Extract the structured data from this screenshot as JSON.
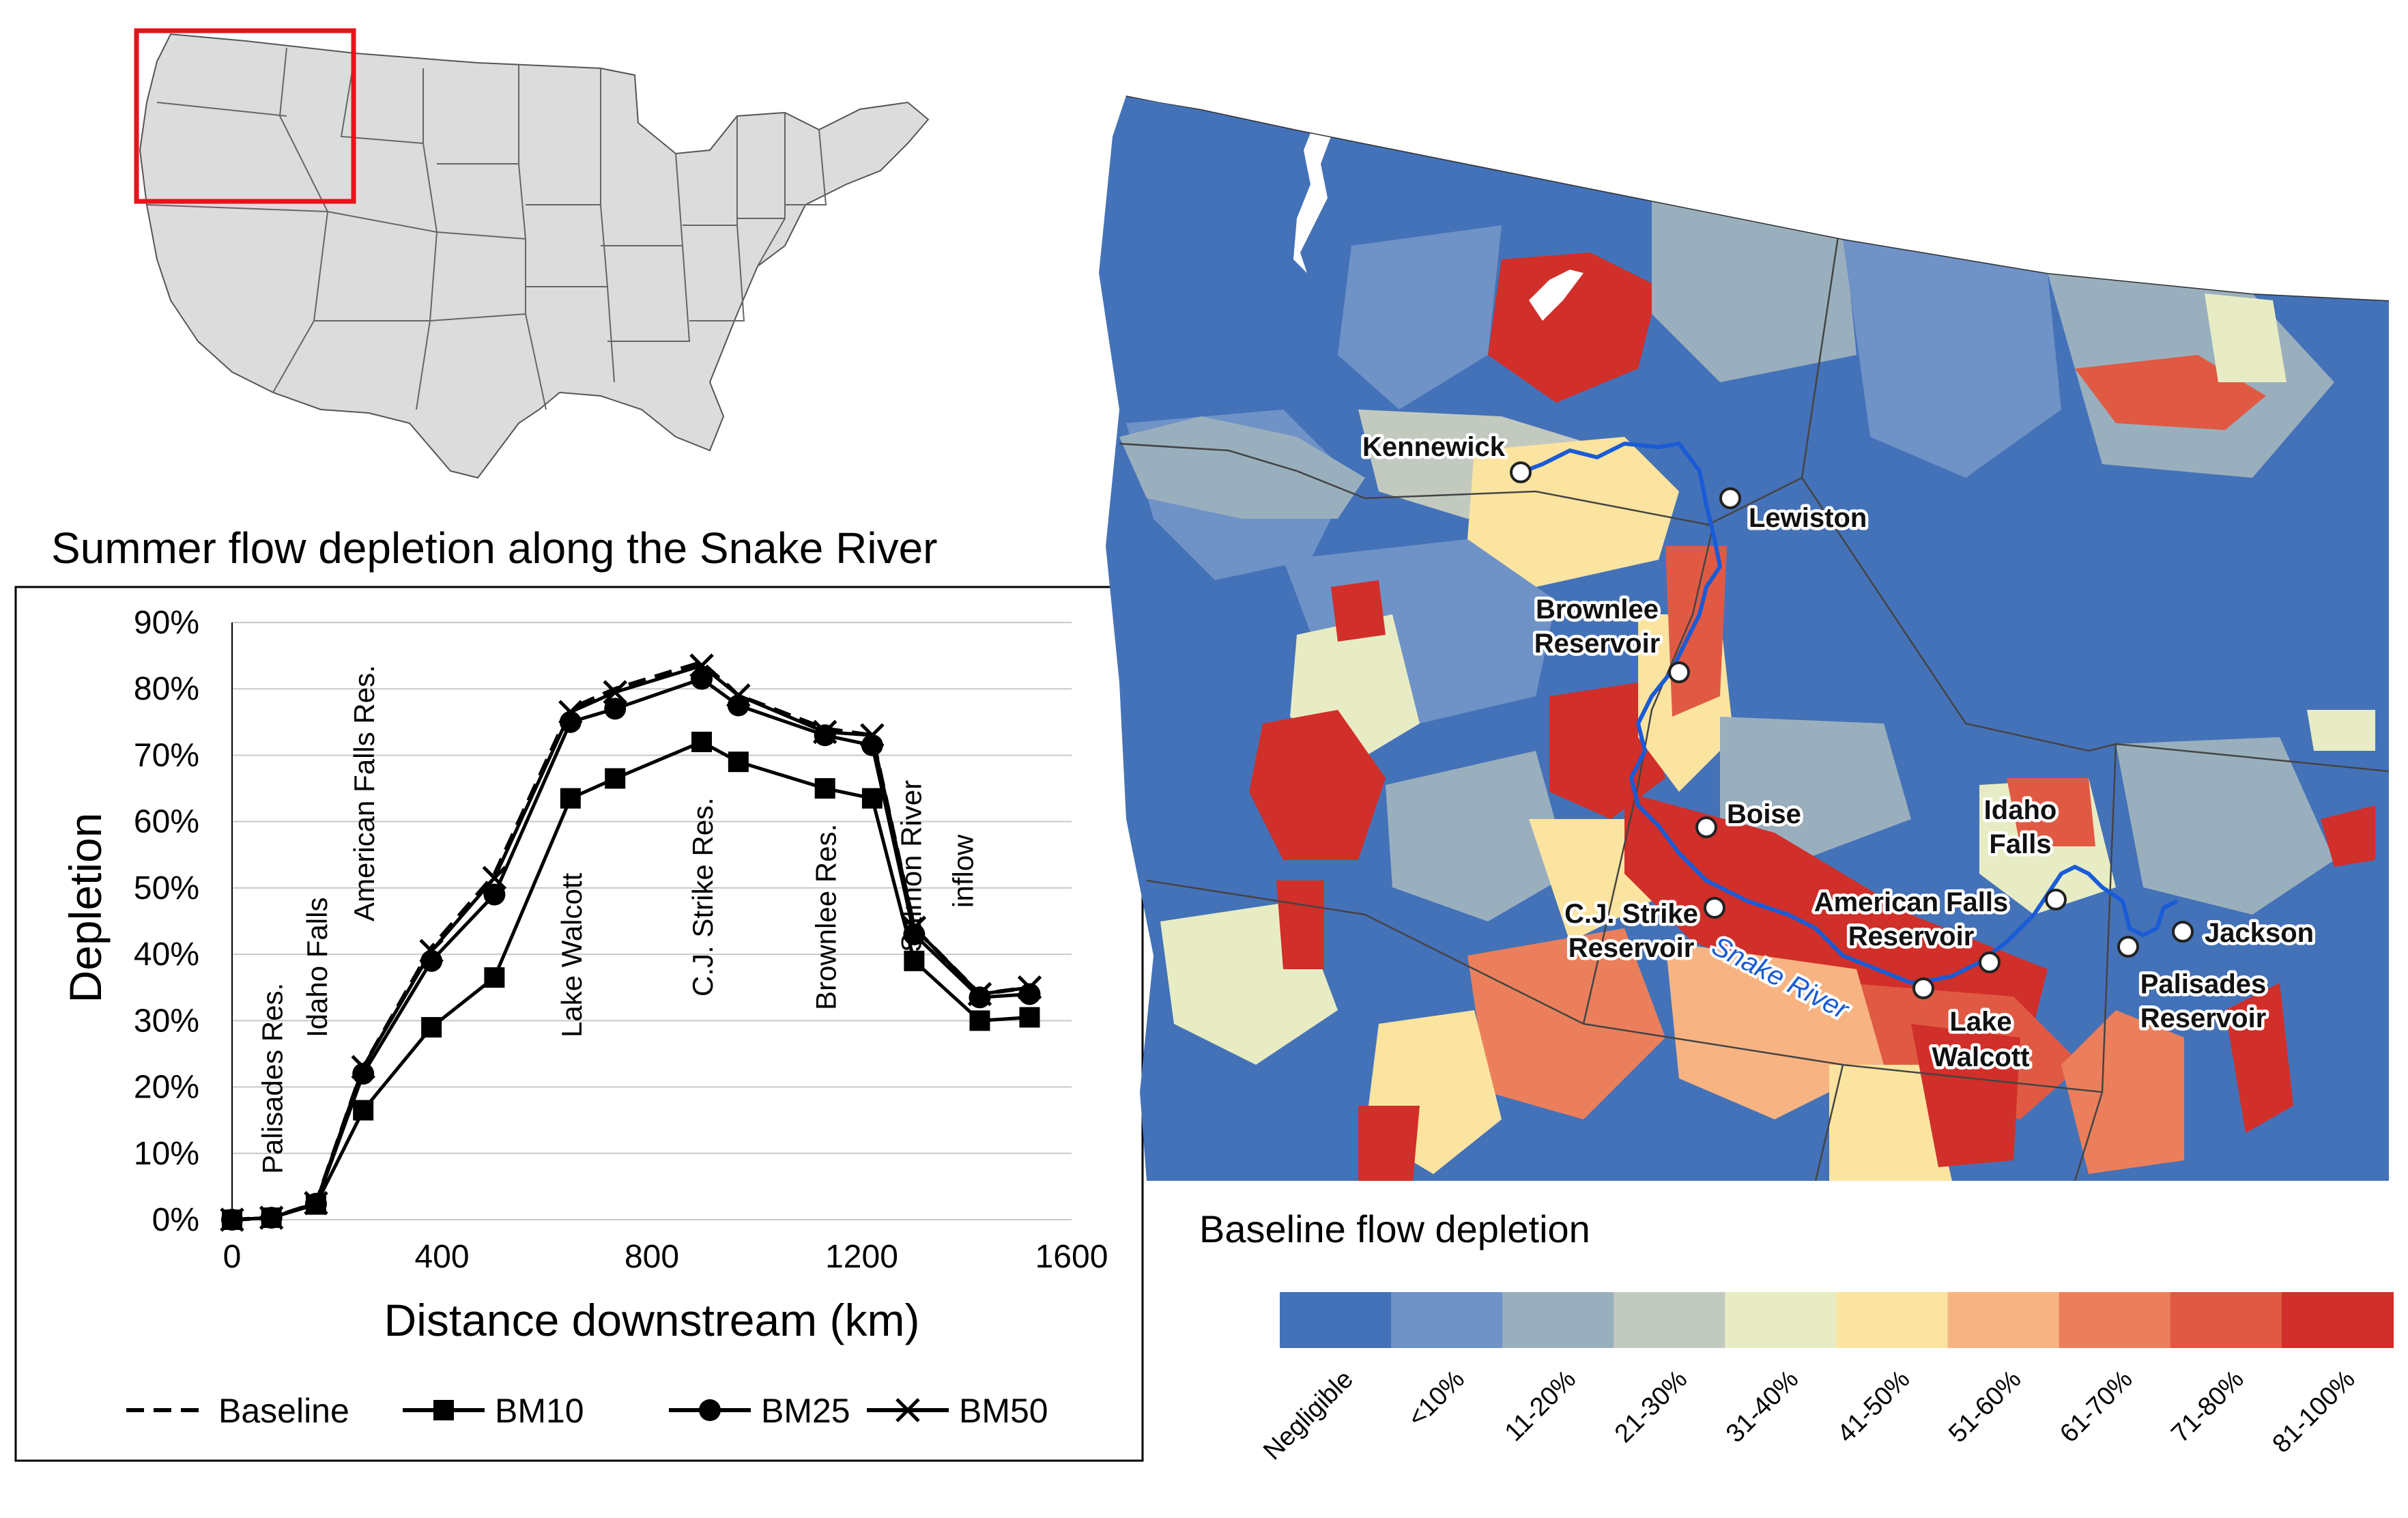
{
  "figure": {
    "inset_title": "Summer flow depletion along the Snake River",
    "map_legend_title": "Baseline flow depletion",
    "river_label": "Snake River"
  },
  "map_places": [
    {
      "key": "kennewick",
      "label": "Kennewick"
    },
    {
      "key": "lewiston",
      "label": "Lewiston"
    },
    {
      "key": "brownlee",
      "label": "Brownlee Reservoir"
    },
    {
      "key": "boise",
      "label": "Boise"
    },
    {
      "key": "cj_strike",
      "label": "C.J. Strike Reservoir"
    },
    {
      "key": "american_falls",
      "label": "American Falls Reservoir"
    },
    {
      "key": "idaho_falls",
      "label": "Idaho Falls"
    },
    {
      "key": "lake_walcott",
      "label": "Lake Walcott"
    },
    {
      "key": "palisades",
      "label": "Palisades Reservoir"
    },
    {
      "key": "jackson",
      "label": "Jackson"
    }
  ],
  "depletion_scale": {
    "categories": [
      "Negligible",
      "<10%",
      "11-20%",
      "21-30%",
      "31-40%",
      "41-50%",
      "51-60%",
      "61-70%",
      "71-80%",
      "81-100%"
    ],
    "colors": [
      "#4472b8",
      "#6f92c7",
      "#9aafbe",
      "#c2cac0",
      "#e8ecc4",
      "#fbe4a0",
      "#f7b482",
      "#ec7f5b",
      "#e05a43",
      "#d12f29"
    ]
  },
  "chart_data": {
    "type": "line",
    "title": "Summer flow depletion along the Snake River",
    "xlabel": "Distance downstream (km)",
    "ylabel": "Depletion",
    "xlim": [
      0,
      1600
    ],
    "ylim": [
      0,
      90
    ],
    "xticks": [
      "0",
      "400",
      "800",
      "1200",
      "1600"
    ],
    "yticks": [
      "0%",
      "10%",
      "20%",
      "30%",
      "40%",
      "50%",
      "60%",
      "70%",
      "80%",
      "90%"
    ],
    "grid": "horizontal",
    "legend_position": "bottom",
    "series": [
      {
        "name": "Baseline",
        "style": "dashed",
        "x": [
          0,
          75,
          160,
          250,
          380,
          500,
          645,
          730,
          895,
          965,
          1130,
          1220,
          1300,
          1425,
          1520
        ],
        "y": [
          0,
          0.3,
          2.5,
          23,
          41,
          52,
          77,
          80,
          84,
          79,
          74,
          73,
          44,
          34,
          35
        ]
      },
      {
        "name": "BM10",
        "style": "square",
        "x": [
          0,
          75,
          160,
          250,
          380,
          500,
          645,
          730,
          895,
          965,
          1130,
          1220,
          1300,
          1425,
          1520
        ],
        "y": [
          0,
          0.3,
          2.3,
          16.5,
          29,
          36.5,
          63.5,
          66.5,
          72,
          69,
          65,
          63.5,
          39,
          30,
          30.5
        ]
      },
      {
        "name": "BM25",
        "style": "circle",
        "x": [
          0,
          75,
          160,
          250,
          380,
          500,
          645,
          730,
          895,
          965,
          1130,
          1220,
          1300,
          1425,
          1520
        ],
        "y": [
          0,
          0.3,
          2.4,
          22,
          39,
          49,
          75,
          77,
          81.5,
          77.5,
          73,
          71.5,
          43,
          33.5,
          34
        ]
      },
      {
        "name": "BM50",
        "style": "cross",
        "x": [
          0,
          75,
          160,
          250,
          380,
          500,
          645,
          730,
          895,
          965,
          1130,
          1220,
          1300,
          1425,
          1520
        ],
        "y": [
          0,
          0.3,
          2.5,
          23,
          40.5,
          51.5,
          76.5,
          79.5,
          83.5,
          79,
          73.5,
          73,
          44,
          34,
          35
        ]
      }
    ],
    "annotations": [
      {
        "label": "Palisades Res.",
        "x": 75
      },
      {
        "label": "Idaho Falls",
        "x": 160
      },
      {
        "label": "American Falls Res.",
        "x": 250
      },
      {
        "label": "Lake Walcott",
        "x": 645
      },
      {
        "label": "C.J. Strike Res.",
        "x": 895
      },
      {
        "label": "Brownlee Res.",
        "x": 1130
      },
      {
        "label": "Salmon River",
        "x": 1300
      },
      {
        "label": "inflow",
        "x": 1300
      }
    ]
  }
}
